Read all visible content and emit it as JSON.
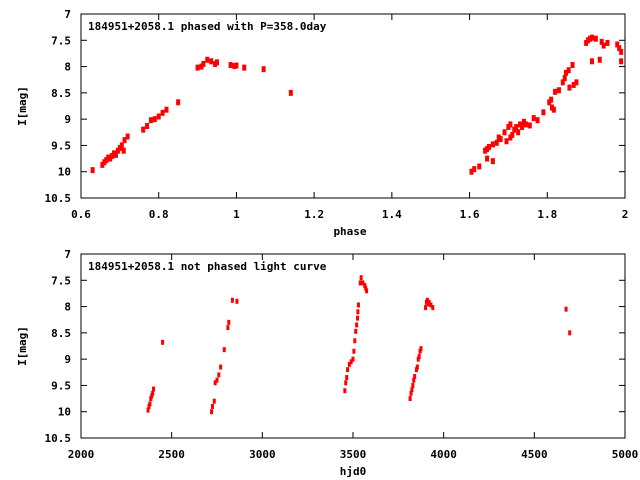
{
  "point_color": "#ff0000",
  "chart_data": [
    {
      "type": "scatter",
      "title": "184951+2058.1 phased with P=358.0day",
      "xlabel": "phase",
      "ylabel": "I[mag]",
      "xlim": [
        0.6,
        2
      ],
      "ylim": [
        10.5,
        7
      ],
      "y_inverted": true,
      "grid": false,
      "xticks": [
        "0.6",
        "0.8",
        "1",
        "1.2",
        "1.4",
        "1.6",
        "1.8",
        "2"
      ],
      "xtick_values": [
        0.6,
        0.8,
        1,
        1.2,
        1.4,
        1.6,
        1.8,
        2
      ],
      "yticks": [
        "7",
        "7.5",
        "8",
        "8.5",
        "9",
        "9.5",
        "10",
        "10.5"
      ],
      "ytick_values": [
        7,
        7.5,
        8,
        8.5,
        9,
        9.5,
        10,
        10.5
      ],
      "points": [
        [
          0.63,
          9.97
        ],
        [
          0.655,
          9.87
        ],
        [
          0.66,
          9.82
        ],
        [
          0.665,
          9.78
        ],
        [
          0.67,
          9.73
        ],
        [
          0.675,
          9.75
        ],
        [
          0.68,
          9.7
        ],
        [
          0.685,
          9.65
        ],
        [
          0.69,
          9.68
        ],
        [
          0.695,
          9.6
        ],
        [
          0.7,
          9.55
        ],
        [
          0.705,
          9.5
        ],
        [
          0.71,
          9.6
        ],
        [
          0.712,
          9.4
        ],
        [
          0.72,
          9.33
        ],
        [
          0.76,
          9.2
        ],
        [
          0.77,
          9.13
        ],
        [
          0.78,
          9.02
        ],
        [
          0.79,
          9.0
        ],
        [
          0.8,
          8.95
        ],
        [
          0.81,
          8.88
        ],
        [
          0.82,
          8.82
        ],
        [
          0.85,
          8.68
        ],
        [
          0.9,
          8.02
        ],
        [
          0.91,
          8.0
        ],
        [
          0.915,
          7.95
        ],
        [
          0.925,
          7.87
        ],
        [
          0.935,
          7.9
        ],
        [
          0.945,
          7.95
        ],
        [
          0.95,
          7.92
        ],
        [
          0.985,
          7.97
        ],
        [
          0.995,
          7.99
        ],
        [
          1.0,
          7.98
        ],
        [
          1.02,
          8.02
        ],
        [
          1.07,
          8.05
        ],
        [
          1.14,
          8.5
        ],
        [
          1.605,
          10.0
        ],
        [
          1.612,
          9.95
        ],
        [
          1.625,
          9.9
        ],
        [
          1.64,
          9.6
        ],
        [
          1.645,
          9.57
        ],
        [
          1.645,
          9.75
        ],
        [
          1.65,
          9.53
        ],
        [
          1.66,
          9.48
        ],
        [
          1.66,
          9.8
        ],
        [
          1.67,
          9.45
        ],
        [
          1.675,
          9.35
        ],
        [
          1.68,
          9.38
        ],
        [
          1.69,
          9.25
        ],
        [
          1.695,
          9.42
        ],
        [
          1.7,
          9.15
        ],
        [
          1.705,
          9.1
        ],
        [
          1.705,
          9.35
        ],
        [
          1.71,
          9.3
        ],
        [
          1.715,
          9.2
        ],
        [
          1.72,
          9.15
        ],
        [
          1.725,
          9.25
        ],
        [
          1.73,
          9.1
        ],
        [
          1.735,
          9.15
        ],
        [
          1.74,
          9.05
        ],
        [
          1.745,
          9.1
        ],
        [
          1.755,
          9.12
        ],
        [
          1.765,
          8.98
        ],
        [
          1.775,
          9.02
        ],
        [
          1.79,
          8.87
        ],
        [
          1.805,
          8.68
        ],
        [
          1.81,
          8.63
        ],
        [
          1.812,
          8.78
        ],
        [
          1.817,
          8.82
        ],
        [
          1.82,
          8.48
        ],
        [
          1.83,
          8.45
        ],
        [
          1.84,
          8.3
        ],
        [
          1.845,
          8.22
        ],
        [
          1.848,
          8.12
        ],
        [
          1.855,
          8.07
        ],
        [
          1.857,
          8.4
        ],
        [
          1.865,
          7.97
        ],
        [
          1.868,
          8.35
        ],
        [
          1.875,
          8.3
        ],
        [
          1.9,
          7.55
        ],
        [
          1.905,
          7.5
        ],
        [
          1.91,
          7.47
        ],
        [
          1.915,
          7.45
        ],
        [
          1.915,
          7.9
        ],
        [
          1.925,
          7.47
        ],
        [
          1.935,
          7.87
        ],
        [
          1.94,
          7.53
        ],
        [
          1.945,
          7.6
        ],
        [
          1.955,
          7.55
        ],
        [
          1.98,
          7.58
        ],
        [
          1.985,
          7.65
        ],
        [
          1.99,
          7.72
        ],
        [
          1.99,
          7.9
        ]
      ]
    },
    {
      "type": "scatter",
      "title": "184951+2058.1 not phased light curve",
      "xlabel": "hjd0",
      "ylabel": "I[mag]",
      "xlim": [
        2000,
        5000
      ],
      "ylim": [
        10.5,
        7
      ],
      "y_inverted": true,
      "grid": false,
      "xticks": [
        "2000",
        "2500",
        "3000",
        "3500",
        "4000",
        "4500",
        "5000"
      ],
      "xtick_values": [
        2000,
        2500,
        3000,
        3500,
        4000,
        4500,
        5000
      ],
      "yticks": [
        "7",
        "7.5",
        "8",
        "8.5",
        "9",
        "9.5",
        "10",
        "10.5"
      ],
      "ytick_values": [
        7,
        7.5,
        8,
        8.5,
        9,
        9.5,
        10,
        10.5
      ],
      "points": [
        [
          2370,
          9.97
        ],
        [
          2375,
          9.9
        ],
        [
          2380,
          9.85
        ],
        [
          2385,
          9.75
        ],
        [
          2390,
          9.7
        ],
        [
          2395,
          9.65
        ],
        [
          2400,
          9.57
        ],
        [
          2450,
          8.68
        ],
        [
          2720,
          10.0
        ],
        [
          2725,
          9.9
        ],
        [
          2735,
          9.8
        ],
        [
          2740,
          9.45
        ],
        [
          2750,
          9.4
        ],
        [
          2760,
          9.3
        ],
        [
          2770,
          9.15
        ],
        [
          2790,
          8.82
        ],
        [
          2810,
          8.4
        ],
        [
          2815,
          8.3
        ],
        [
          2835,
          7.88
        ],
        [
          2860,
          7.9
        ],
        [
          3455,
          9.6
        ],
        [
          3460,
          9.45
        ],
        [
          3465,
          9.35
        ],
        [
          3470,
          9.2
        ],
        [
          3480,
          9.1
        ],
        [
          3490,
          9.05
        ],
        [
          3500,
          9.0
        ],
        [
          3505,
          8.85
        ],
        [
          3510,
          8.65
        ],
        [
          3515,
          8.47
        ],
        [
          3520,
          8.35
        ],
        [
          3525,
          8.22
        ],
        [
          3527,
          8.1
        ],
        [
          3530,
          7.97
        ],
        [
          3540,
          7.55
        ],
        [
          3545,
          7.45
        ],
        [
          3555,
          7.55
        ],
        [
          3565,
          7.6
        ],
        [
          3570,
          7.65
        ],
        [
          3575,
          7.7
        ],
        [
          3815,
          9.75
        ],
        [
          3820,
          9.65
        ],
        [
          3825,
          9.58
        ],
        [
          3830,
          9.5
        ],
        [
          3835,
          9.4
        ],
        [
          3840,
          9.33
        ],
        [
          3850,
          9.2
        ],
        [
          3855,
          9.15
        ],
        [
          3860,
          9.0
        ],
        [
          3865,
          8.95
        ],
        [
          3870,
          8.85
        ],
        [
          3875,
          8.8
        ],
        [
          3900,
          8.02
        ],
        [
          3905,
          7.92
        ],
        [
          3910,
          7.88
        ],
        [
          3915,
          7.95
        ],
        [
          3920,
          7.92
        ],
        [
          3930,
          7.97
        ],
        [
          3940,
          8.02
        ],
        [
          4675,
          8.05
        ],
        [
          4695,
          8.5
        ]
      ]
    }
  ]
}
